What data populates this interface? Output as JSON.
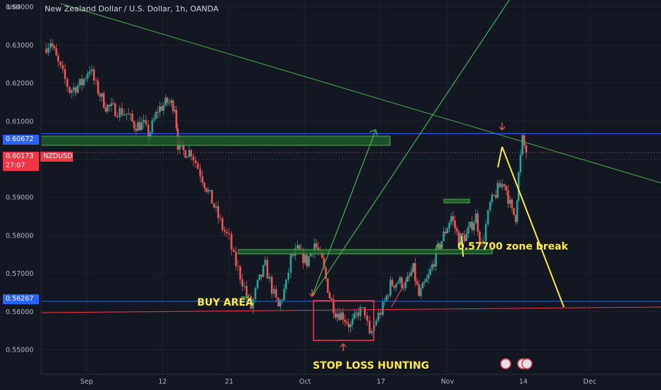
{
  "header": {
    "currency": "USD",
    "title": "New Zealand Dollar / U.S. Dollar, 1h, OANDA"
  },
  "price_tags": {
    "upper_level": "0.60672",
    "current_price": "0.60173",
    "countdown": "27:07",
    "symbol": "NZDUSD",
    "lower_level": "0.56267"
  },
  "annotations": {
    "buy_area": "BUY AREA",
    "zone_break": "0.57700 zone break",
    "stop_loss": "STOP LOSS HUNTING"
  },
  "colors": {
    "background": "#131722",
    "up_candle": "#26a69a",
    "down_candle": "#ef5350",
    "level_line": "#2962ff",
    "zone_fill": "#1e5a2a",
    "zone_border": "#4caf50",
    "trend_green": "#4caf50",
    "projection": "#ffeb3b",
    "box_red": "#f23645"
  },
  "chart_data": {
    "type": "candlestick",
    "title": "New Zealand Dollar / U.S. Dollar, 1h, OANDA",
    "ylabel": "USD",
    "ylim": [
      0.5435,
      0.6418
    ],
    "y_ticks": [
      0.64,
      0.63,
      0.62,
      0.61,
      0.6,
      0.59,
      0.58,
      0.57,
      0.56,
      0.55
    ],
    "y_tick_labels": [
      "0.64000",
      "0.63000",
      "0.62000",
      "0.61000",
      "0.60000",
      "0.59000",
      "0.58000",
      "0.57000",
      "0.56000",
      "0.55000"
    ],
    "x_tick_labels": [
      "Sep",
      "12",
      "21",
      "Oct",
      "17",
      "Nov",
      "14",
      "Dec"
    ],
    "x_tick_times": [
      4,
      12,
      19,
      27,
      35,
      42,
      50,
      57
    ],
    "xlim": [
      -0.8,
      64.5
    ],
    "path": [
      [
        -0.5,
        0.629
      ],
      [
        0.2,
        0.631
      ],
      [
        1.0,
        0.625
      ],
      [
        2.2,
        0.618
      ],
      [
        3.5,
        0.62
      ],
      [
        4.3,
        0.624
      ],
      [
        5.0,
        0.619
      ],
      [
        6.0,
        0.614
      ],
      [
        7.0,
        0.613
      ],
      [
        8.2,
        0.612
      ],
      [
        9.0,
        0.609
      ],
      [
        10.0,
        0.609
      ],
      [
        10.5,
        0.606
      ],
      [
        11.5,
        0.613
      ],
      [
        12.5,
        0.615
      ],
      [
        13.3,
        0.614
      ],
      [
        13.6,
        0.604
      ],
      [
        14.2,
        0.602
      ],
      [
        15.0,
        0.602
      ],
      [
        16.2,
        0.595
      ],
      [
        17.2,
        0.589
      ],
      [
        18.3,
        0.582
      ],
      [
        19.0,
        0.579
      ],
      [
        19.5,
        0.574
      ],
      [
        20.4,
        0.568
      ],
      [
        21.3,
        0.561
      ],
      [
        22.0,
        0.567
      ],
      [
        22.8,
        0.572
      ],
      [
        23.5,
        0.566
      ],
      [
        24.2,
        0.561
      ],
      [
        25.0,
        0.567
      ],
      [
        25.5,
        0.574
      ],
      [
        26.2,
        0.576
      ],
      [
        27.2,
        0.573
      ],
      [
        28.0,
        0.578
      ],
      [
        28.8,
        0.573
      ],
      [
        29.6,
        0.564
      ],
      [
        30.2,
        0.56
      ],
      [
        31.0,
        0.559
      ],
      [
        31.8,
        0.556
      ],
      [
        32.6,
        0.56
      ],
      [
        33.3,
        0.56
      ],
      [
        33.8,
        0.553
      ],
      [
        34.5,
        0.558
      ],
      [
        35.2,
        0.561
      ],
      [
        36.0,
        0.567
      ],
      [
        36.8,
        0.568
      ],
      [
        37.6,
        0.567
      ],
      [
        38.4,
        0.571
      ],
      [
        39.0,
        0.564
      ],
      [
        40.0,
        0.569
      ],
      [
        40.8,
        0.575
      ],
      [
        41.6,
        0.58
      ],
      [
        42.4,
        0.585
      ],
      [
        43.2,
        0.579
      ],
      [
        44.0,
        0.58
      ],
      [
        45.0,
        0.585
      ],
      [
        45.6,
        0.577
      ],
      [
        46.5,
        0.588
      ],
      [
        47.3,
        0.592
      ],
      [
        48.0,
        0.594
      ],
      [
        48.8,
        0.586
      ],
      [
        49.2,
        0.585
      ],
      [
        49.5,
        0.596
      ],
      [
        49.9,
        0.605
      ],
      [
        50.3,
        0.602
      ]
    ]
  }
}
